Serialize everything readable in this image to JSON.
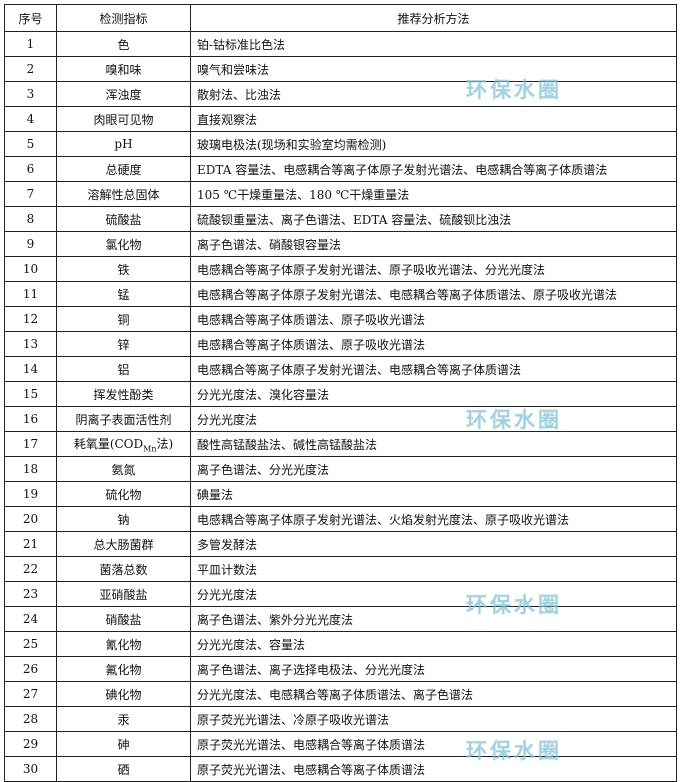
{
  "header": {
    "no": "序号",
    "indicator": "检测指标",
    "method": "推荐分析方法"
  },
  "rows": [
    {
      "no": "1",
      "indicator": "色",
      "method": "铂-钴标准比色法"
    },
    {
      "no": "2",
      "indicator": "嗅和味",
      "method": "嗅气和尝味法"
    },
    {
      "no": "3",
      "indicator": "浑浊度",
      "method": "散射法、比浊法"
    },
    {
      "no": "4",
      "indicator": "肉眼可见物",
      "method": "直接观察法"
    },
    {
      "no": "5",
      "indicator": "pH",
      "method": "玻璃电极法(现场和实验室均需检测)"
    },
    {
      "no": "6",
      "indicator": "总硬度",
      "method": "EDTA 容量法、电感耦合等离子体原子发射光谱法、电感耦合等离子体质谱法"
    },
    {
      "no": "7",
      "indicator": "溶解性总固体",
      "method": "105 ℃干燥重量法、180 ℃干燥重量法"
    },
    {
      "no": "8",
      "indicator": "硫酸盐",
      "method": "硫酸钡重量法、离子色谱法、EDTA 容量法、硫酸钡比浊法"
    },
    {
      "no": "9",
      "indicator": "氯化物",
      "method": "离子色谱法、硝酸银容量法"
    },
    {
      "no": "10",
      "indicator": "铁",
      "method": "电感耦合等离子体原子发射光谱法、原子吸收光谱法、分光光度法"
    },
    {
      "no": "11",
      "indicator": "锰",
      "method": "电感耦合等离子体原子发射光谱法、电感耦合等离子体质谱法、原子吸收光谱法"
    },
    {
      "no": "12",
      "indicator": "铜",
      "method": "电感耦合等离子体质谱法、原子吸收光谱法"
    },
    {
      "no": "13",
      "indicator": "锌",
      "method": "电感耦合等离子体质谱法、原子吸收光谱法"
    },
    {
      "no": "14",
      "indicator": "铝",
      "method": "电感耦合等离子体原子发射光谱法、电感耦合等离子体质谱法"
    },
    {
      "no": "15",
      "indicator": "挥发性酚类",
      "method": "分光光度法、溴化容量法"
    },
    {
      "no": "16",
      "indicator": "阴离子表面活性剂",
      "method": "分光光度法"
    },
    {
      "no": "17",
      "indicator": "耗氧量(COD",
      "indicator_sub": "Mn",
      "indicator_tail": "法)",
      "method": "酸性高锰酸盐法、碱性高锰酸盐法"
    },
    {
      "no": "18",
      "indicator": "氨氮",
      "method": "离子色谱法、分光光度法"
    },
    {
      "no": "19",
      "indicator": "硫化物",
      "method": "碘量法"
    },
    {
      "no": "20",
      "indicator": "钠",
      "method": "电感耦合等离子体原子发射光谱法、火焰发射光度法、原子吸收光谱法"
    },
    {
      "no": "21",
      "indicator": "总大肠菌群",
      "method": "多管发酵法"
    },
    {
      "no": "22",
      "indicator": "菌落总数",
      "method": "平皿计数法"
    },
    {
      "no": "23",
      "indicator": "亚硝酸盐",
      "method": "分光光度法"
    },
    {
      "no": "24",
      "indicator": "硝酸盐",
      "method": "离子色谱法、紫外分光光度法"
    },
    {
      "no": "25",
      "indicator": "氰化物",
      "method": "分光光度法、容量法"
    },
    {
      "no": "26",
      "indicator": "氟化物",
      "method": "离子色谱法、离子选择电极法、分光光度法"
    },
    {
      "no": "27",
      "indicator": "碘化物",
      "method": "分光光度法、电感耦合等离子体质谱法、离子色谱法"
    },
    {
      "no": "28",
      "indicator": "汞",
      "method": "原子荧光光谱法、冷原子吸收光谱法"
    },
    {
      "no": "29",
      "indicator": "砷",
      "method": "原子荧光光谱法、电感耦合等离子体质谱法"
    },
    {
      "no": "30",
      "indicator": "硒",
      "method": "原子荧光光谱法、电感耦合等离子体质谱法"
    }
  ],
  "watermark": {
    "text": "环保水圈",
    "color": "#7fc3d9"
  }
}
